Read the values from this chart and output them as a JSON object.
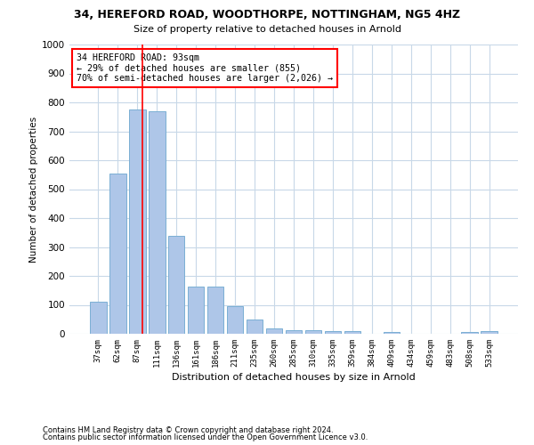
{
  "title_line1": "34, HEREFORD ROAD, WOODTHORPE, NOTTINGHAM, NG5 4HZ",
  "title_line2": "Size of property relative to detached houses in Arnold",
  "xlabel": "Distribution of detached houses by size in Arnold",
  "ylabel": "Number of detached properties",
  "categories": [
    "37sqm",
    "62sqm",
    "87sqm",
    "111sqm",
    "136sqm",
    "161sqm",
    "186sqm",
    "211sqm",
    "235sqm",
    "260sqm",
    "285sqm",
    "310sqm",
    "335sqm",
    "359sqm",
    "384sqm",
    "409sqm",
    "434sqm",
    "459sqm",
    "483sqm",
    "508sqm",
    "533sqm"
  ],
  "values": [
    110,
    555,
    775,
    770,
    340,
    163,
    163,
    95,
    50,
    18,
    13,
    12,
    10,
    10,
    0,
    7,
    0,
    0,
    0,
    7,
    10
  ],
  "bar_color": "#aec6e8",
  "bar_edgecolor": "#7bafd4",
  "annotation_text": "34 HEREFORD ROAD: 93sqm\n← 29% of detached houses are smaller (855)\n70% of semi-detached houses are larger (2,026) →",
  "ylim": [
    0,
    1000
  ],
  "yticks": [
    0,
    100,
    200,
    300,
    400,
    500,
    600,
    700,
    800,
    900,
    1000
  ],
  "footer_line1": "Contains HM Land Registry data © Crown copyright and database right 2024.",
  "footer_line2": "Contains public sector information licensed under the Open Government Licence v3.0.",
  "background_color": "#ffffff",
  "grid_color": "#c8d8e8",
  "vline_index": 2.25
}
